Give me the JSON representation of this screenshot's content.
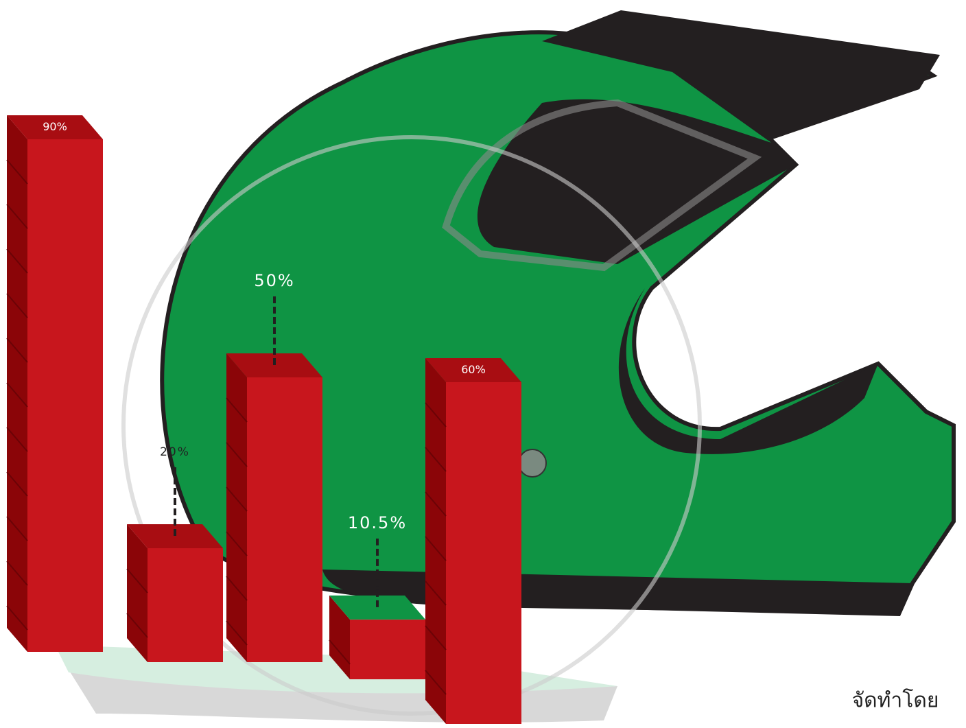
{
  "chart_data": {
    "type": "bar",
    "values": [
      90,
      20,
      50,
      10.5,
      60
    ],
    "value_labels": [
      "90%",
      "20%",
      "50%",
      "10.5%",
      "60%"
    ],
    "color": "#c8161d",
    "annotation": "จัดทำโดย"
  }
}
